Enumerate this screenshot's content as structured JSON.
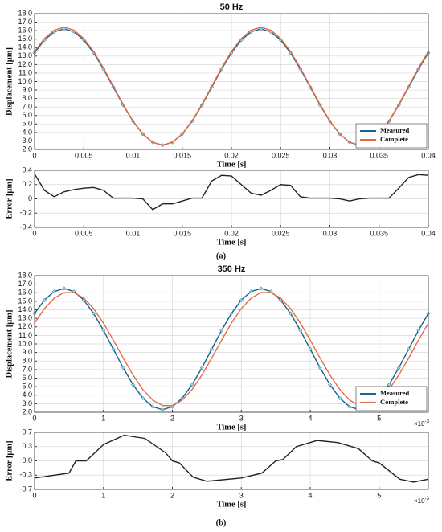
{
  "chart_data": [
    {
      "type": "line",
      "title": "50 Hz",
      "xlabel": "Time [s]",
      "ylabel": "Displacement [μm]",
      "x": [
        0,
        0.001,
        0.002,
        0.003,
        0.004,
        0.005,
        0.006,
        0.007,
        0.008,
        0.009,
        0.01,
        0.011,
        0.012,
        0.013,
        0.014,
        0.015,
        0.016,
        0.017,
        0.018,
        0.019,
        0.02,
        0.021,
        0.022,
        0.023,
        0.024,
        0.025,
        0.026,
        0.027,
        0.028,
        0.029,
        0.03,
        0.031,
        0.032,
        0.033,
        0.034,
        0.035,
        0.036,
        0.037,
        0.038,
        0.039,
        0.04
      ],
      "series": [
        {
          "name": "Measured",
          "color": "#14648c",
          "marker": "diamond",
          "marker_color": "#8fd8ea",
          "values": [
            13.38,
            14.89,
            15.86,
            16.2,
            15.86,
            14.89,
            13.38,
            11.47,
            9.35,
            7.23,
            5.32,
            3.81,
            2.84,
            2.5,
            2.84,
            3.81,
            5.32,
            7.23,
            9.35,
            11.47,
            13.38,
            14.89,
            15.86,
            16.2,
            15.86,
            14.89,
            13.38,
            11.47,
            9.35,
            7.23,
            5.32,
            3.81,
            2.84,
            2.5,
            2.84,
            3.81,
            5.32,
            7.23,
            9.35,
            11.47,
            13.38
          ]
        },
        {
          "name": "Complete",
          "color": "#e8693f",
          "values": [
            13.54,
            15.07,
            16.06,
            16.4,
            16.06,
            15.07,
            13.54,
            11.6,
            9.45,
            7.3,
            5.36,
            3.83,
            2.84,
            2.5,
            2.84,
            3.83,
            5.36,
            7.3,
            9.45,
            11.6,
            13.54,
            15.07,
            16.06,
            16.4,
            16.06,
            15.07,
            13.54,
            11.6,
            9.45,
            7.3,
            5.36,
            3.83,
            2.84,
            2.5,
            2.84,
            3.83,
            5.36,
            7.3,
            9.45,
            11.6,
            13.54
          ]
        }
      ],
      "xlim": [
        0,
        0.04
      ],
      "ylim": [
        2,
        18
      ],
      "xticks": [
        0,
        0.005,
        0.01,
        0.015,
        0.02,
        0.025,
        0.03,
        0.035,
        0.04
      ],
      "yticks": [
        {
          "value": 2,
          "label": "2.0"
        },
        {
          "value": 3,
          "label": "3.0"
        },
        {
          "value": 4,
          "label": "4.0"
        },
        {
          "value": 5,
          "label": "5.0"
        },
        {
          "value": 6,
          "label": "6.0"
        },
        {
          "value": 7,
          "label": "7.0"
        },
        {
          "value": 8,
          "label": "8.0"
        },
        {
          "value": 9,
          "label": "9.0"
        },
        {
          "value": 10,
          "label": "10.0"
        },
        {
          "value": 11,
          "label": "11.0"
        },
        {
          "value": 12,
          "label": "12.0"
        },
        {
          "value": 13,
          "label": "13.0"
        },
        {
          "value": 14,
          "label": "14.0"
        },
        {
          "value": 15,
          "label": "15.0"
        },
        {
          "value": 16,
          "label": "16.0"
        },
        {
          "value": 17,
          "label": "17.0"
        },
        {
          "value": 18,
          "label": "18.0"
        }
      ],
      "grid": true,
      "legend": "lower right"
    },
    {
      "type": "line",
      "xlabel": "Time [s]",
      "ylabel": "Error [μm]",
      "x": [
        0,
        0.001,
        0.002,
        0.003,
        0.004,
        0.005,
        0.006,
        0.007,
        0.008,
        0.009,
        0.01,
        0.011,
        0.012,
        0.013,
        0.014,
        0.015,
        0.016,
        0.017,
        0.018,
        0.019,
        0.02,
        0.021,
        0.022,
        0.023,
        0.024,
        0.025,
        0.026,
        0.027,
        0.028,
        0.029,
        0.03,
        0.031,
        0.032,
        0.033,
        0.034,
        0.035,
        0.036,
        0.037,
        0.038,
        0.039,
        0.04
      ],
      "series": [
        {
          "color": "#222222",
          "values": [
            0.35,
            0.12,
            0.03,
            0.1,
            0.13,
            0.15,
            0.16,
            0.12,
            0.01,
            0.01,
            0.01,
            0,
            -0.15,
            -0.07,
            -0.07,
            -0.03,
            0.01,
            0.01,
            0.25,
            0.33,
            0.32,
            0.2,
            0.08,
            0.05,
            0.12,
            0.2,
            0.19,
            0.03,
            0.01,
            0.01,
            0.01,
            0,
            -0.03,
            0,
            0.01,
            0.01,
            0.01,
            0.15,
            0.3,
            0.34,
            0.33
          ]
        }
      ],
      "xlim": [
        0,
        0.04
      ],
      "ylim": [
        -0.4,
        0.4
      ],
      "xticks": [
        0,
        0.005,
        0.01,
        0.015,
        0.02,
        0.025,
        0.03,
        0.035,
        0.04
      ],
      "yticks": [
        0.4,
        0.2,
        0,
        -0.2,
        -0.4
      ],
      "grid": true
    },
    {
      "type": "line",
      "title": "350 Hz",
      "xlabel": "Time [s]",
      "ylabel": "Displacement [μm]",
      "x_multiplier_base": "×10",
      "x_multiplier_exponent": "-3",
      "x": [
        0,
        0.143,
        0.286,
        0.429,
        0.571,
        0.714,
        0.857,
        1.0,
        1.143,
        1.286,
        1.429,
        1.571,
        1.714,
        1.857,
        2.0,
        2.143,
        2.286,
        2.429,
        2.571,
        2.714,
        2.857,
        3.0,
        3.143,
        3.286,
        3.429,
        3.571,
        3.714,
        3.857,
        4.0,
        4.143,
        4.286,
        4.429,
        4.571,
        4.714,
        4.857,
        5.0,
        5.143,
        5.286,
        5.429,
        5.571,
        5.714
      ],
      "series": [
        {
          "name": "Measured",
          "color": "#14648c",
          "marker": "diamond",
          "marker_color": "#8fd8ea",
          "values": [
            13.57,
            15.14,
            16.15,
            16.5,
            16.15,
            15.14,
            13.57,
            11.59,
            9.4,
            7.21,
            5.23,
            3.66,
            2.65,
            2.3,
            2.65,
            3.66,
            5.23,
            7.21,
            9.4,
            11.59,
            13.57,
            15.14,
            16.15,
            16.5,
            16.15,
            15.14,
            13.57,
            11.59,
            9.4,
            7.21,
            5.23,
            3.66,
            2.65,
            2.3,
            2.65,
            3.66,
            5.23,
            7.21,
            9.4,
            11.59,
            13.57
          ]
        },
        {
          "name": "Complete",
          "color": "#e8693f",
          "values": [
            12.44,
            14.14,
            15.37,
            16.02,
            16.02,
            15.37,
            14.14,
            12.44,
            10.45,
            8.35,
            6.36,
            4.66,
            3.43,
            2.78,
            2.78,
            3.43,
            4.66,
            6.36,
            8.35,
            10.45,
            12.44,
            14.14,
            15.37,
            16.02,
            16.02,
            15.37,
            14.14,
            12.44,
            10.45,
            8.35,
            6.36,
            4.66,
            3.43,
            2.78,
            2.78,
            3.43,
            4.66,
            6.36,
            8.35,
            10.45,
            12.44
          ]
        }
      ],
      "xlim": [
        0,
        5.714
      ],
      "ylim": [
        2,
        18
      ],
      "xticks": [
        0,
        1,
        2,
        3,
        4,
        5
      ],
      "yticks": [
        {
          "value": 2,
          "label": "2.0"
        },
        {
          "value": 3,
          "label": "3.0"
        },
        {
          "value": 4,
          "label": "4.0"
        },
        {
          "value": 5,
          "label": "5.0"
        },
        {
          "value": 6,
          "label": "6.0"
        },
        {
          "value": 7,
          "label": "7.0"
        },
        {
          "value": 8,
          "label": "8.0"
        },
        {
          "value": 9,
          "label": "9.0"
        },
        {
          "value": 10,
          "label": "10.0"
        },
        {
          "value": 11,
          "label": "11.0"
        },
        {
          "value": 12,
          "label": "12.0"
        },
        {
          "value": 13,
          "label": "13.0"
        },
        {
          "value": 14,
          "label": "14.0"
        },
        {
          "value": 15,
          "label": "15.0"
        },
        {
          "value": 16,
          "label": "16.0"
        },
        {
          "value": 17,
          "label": "17.0"
        },
        {
          "value": 18,
          "label": "18.0"
        }
      ],
      "grid": true,
      "legend": "lower right"
    },
    {
      "type": "line",
      "xlabel": "Time [s]",
      "ylabel": "Error [μm]",
      "x_multiplier_base": "×10",
      "x_multiplier_exponent": "-3",
      "x": [
        0,
        0.5,
        0.6,
        0.75,
        1.0,
        1.3,
        1.6,
        1.9,
        2.0,
        2.1,
        2.3,
        2.5,
        3.0,
        3.3,
        3.5,
        3.6,
        3.8,
        4.1,
        4.4,
        4.7,
        4.9,
        5.0,
        5.3,
        5.5,
        5.714
      ],
      "series": [
        {
          "color": "#222222",
          "values": [
            -0.42,
            -0.3,
            0,
            0,
            0.4,
            0.63,
            0.55,
            0.2,
            0,
            -0.05,
            -0.4,
            -0.5,
            -0.42,
            -0.3,
            0,
            0.03,
            0.35,
            0.5,
            0.45,
            0.3,
            0,
            -0.05,
            -0.45,
            -0.52,
            -0.45
          ]
        }
      ],
      "xlim": [
        0,
        5.714
      ],
      "ylim": [
        -0.7,
        0.7
      ],
      "xticks": [
        0,
        1,
        2,
        3,
        4,
        5
      ],
      "yticks": [
        0.7,
        {
          "value": 0.35,
          "label": "0.3"
        },
        {
          "value": 0,
          "label": "0.0"
        },
        {
          "value": -0.35,
          "label": "-0.3"
        },
        -0.7
      ],
      "grid": true
    }
  ],
  "captions": [
    "(a)",
    "(b)"
  ]
}
